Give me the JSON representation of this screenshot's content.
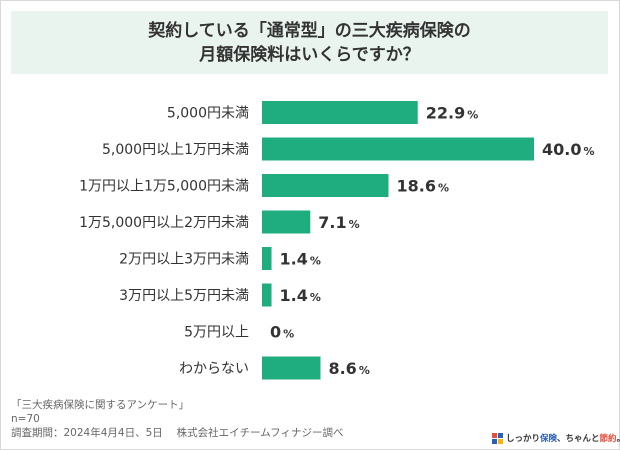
{
  "header": {
    "title_line1": "契約している「通常型」の三大疾病保険の",
    "title_line2": "月額保険料はいくらですか？"
  },
  "chart_data": {
    "type": "bar",
    "orientation": "horizontal",
    "categories": [
      "5,000円未満",
      "5,000円以上1万円未満",
      "1万円以上1万5,000円未満",
      "1万5,000円以上2万円未満",
      "2万円以上3万円未満",
      "3万円以上5万円未満",
      "5万円以上",
      "わからない"
    ],
    "values": [
      22.9,
      40.0,
      18.6,
      7.1,
      1.4,
      1.4,
      0,
      8.6
    ],
    "value_labels": [
      "22.9",
      "40.0",
      "18.6",
      "7.1",
      "1.4",
      "1.4",
      "0",
      "8.6"
    ],
    "unit": "%",
    "xlim": [
      0,
      40.0
    ],
    "bar_color": "#1fad7f",
    "grid": false
  },
  "footer": {
    "survey_name": "「三大疾病保険に関するアンケート」",
    "sample": "n=70",
    "period": "調査期間：2024年4月4日、5日　 株式会社エイチームフィナジー調べ"
  },
  "brand": {
    "part1": "しっかり",
    "part2": "保険",
    "part3": "、ちゃんと",
    "part4": "節約",
    "part5": "。",
    "icon": "brand-logo-icon"
  }
}
